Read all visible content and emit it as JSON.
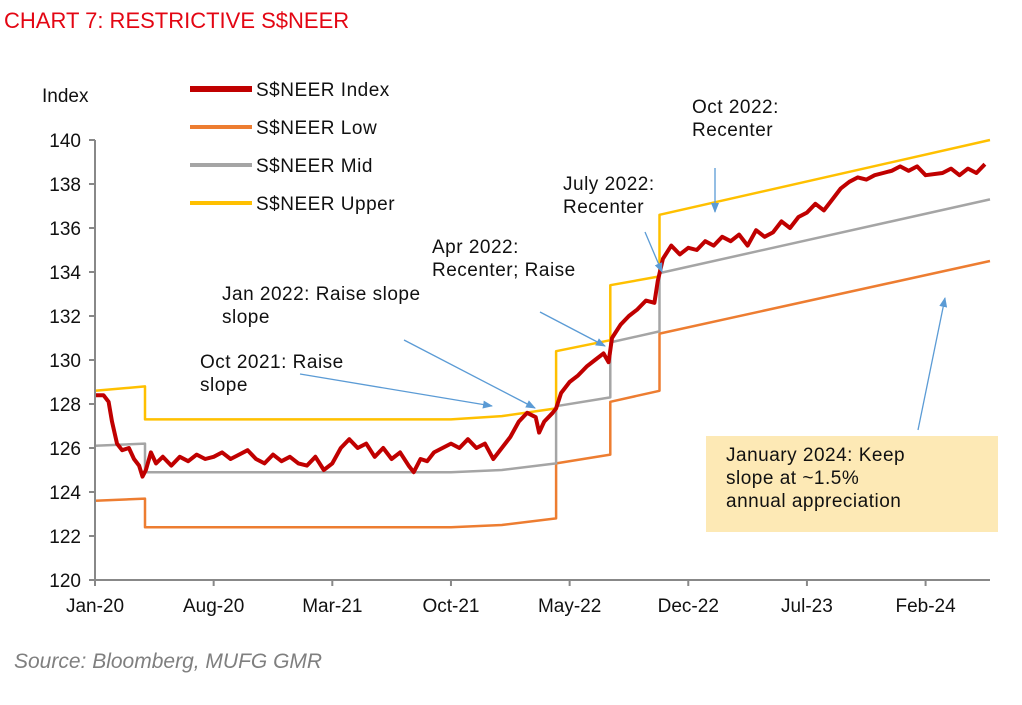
{
  "title": "CHART 7: RESTRICTIVE S$NEER",
  "source": "Source: Bloomberg, MUFG GMR",
  "colors": {
    "index": "#c00000",
    "low": "#ed7d31",
    "mid": "#a5a5a5",
    "upper": "#ffc000",
    "arrow": "#5b9bd5",
    "note_bg": "#fde9b5",
    "title": "#e30613"
  },
  "annotations": {
    "oct2022": [
      "Oct 2022:",
      "Recenter"
    ],
    "jul2022": [
      "July 2022:",
      "Recenter"
    ],
    "apr2022": [
      "Apr 2022:",
      "Recenter; Raise"
    ],
    "jan2022": [
      "Jan 2022: Raise slope",
      "slope"
    ],
    "oct2021": [
      "Oct 2021: Raise",
      "slope"
    ],
    "jan2024": [
      "January 2024: Keep",
      "slope at ~1.5%",
      "annual appreciation"
    ]
  },
  "chart_data": {
    "type": "line",
    "title": "CHART 7: RESTRICTIVE S$NEER",
    "xlabel": "",
    "ylabel": "Index",
    "x_unit": "months since Jan-2020",
    "xlim": [
      0,
      52.8
    ],
    "ylim": [
      120,
      140
    ],
    "yticks": [
      120,
      122,
      124,
      126,
      128,
      130,
      132,
      134,
      136,
      138,
      140
    ],
    "xticks": [
      {
        "m": 0,
        "label": "Jan-20"
      },
      {
        "m": 7,
        "label": "Aug-20"
      },
      {
        "m": 14,
        "label": "Mar-21"
      },
      {
        "m": 21,
        "label": "Oct-21"
      },
      {
        "m": 28,
        "label": "May-22"
      },
      {
        "m": 35,
        "label": "Dec-22"
      },
      {
        "m": 42,
        "label": "Jul-23"
      },
      {
        "m": 49,
        "label": "Feb-24"
      }
    ],
    "grid": false,
    "legend_position": "top-left",
    "series": [
      {
        "name": "S$NEER Index",
        "key": "index",
        "points": [
          [
            0,
            128.4
          ],
          [
            0.5,
            128.4
          ],
          [
            0.8,
            128.1
          ],
          [
            1.0,
            127.2
          ],
          [
            1.3,
            126.2
          ],
          [
            1.6,
            125.9
          ],
          [
            2.0,
            126.0
          ],
          [
            2.3,
            125.5
          ],
          [
            2.6,
            125.2
          ],
          [
            2.8,
            124.7
          ],
          [
            3.0,
            125.0
          ],
          [
            3.3,
            125.8
          ],
          [
            3.6,
            125.3
          ],
          [
            4,
            125.6
          ],
          [
            4.5,
            125.2
          ],
          [
            5,
            125.6
          ],
          [
            5.5,
            125.4
          ],
          [
            6,
            125.7
          ],
          [
            6.5,
            125.5
          ],
          [
            7,
            125.6
          ],
          [
            7.5,
            125.8
          ],
          [
            8,
            125.5
          ],
          [
            8.5,
            125.7
          ],
          [
            9,
            125.9
          ],
          [
            9.5,
            125.5
          ],
          [
            10,
            125.3
          ],
          [
            10.5,
            125.7
          ],
          [
            11,
            125.4
          ],
          [
            11.5,
            125.6
          ],
          [
            12,
            125.3
          ],
          [
            12.5,
            125.2
          ],
          [
            13,
            125.6
          ],
          [
            13.5,
            125.0
          ],
          [
            14,
            125.3
          ],
          [
            14.5,
            126.0
          ],
          [
            15,
            126.4
          ],
          [
            15.5,
            126.0
          ],
          [
            16,
            126.2
          ],
          [
            16.5,
            125.6
          ],
          [
            17,
            126.0
          ],
          [
            17.5,
            125.5
          ],
          [
            18,
            125.8
          ],
          [
            18.5,
            125.2
          ],
          [
            18.8,
            124.9
          ],
          [
            19.2,
            125.5
          ],
          [
            19.6,
            125.4
          ],
          [
            20,
            125.8
          ],
          [
            20.5,
            126.0
          ],
          [
            21,
            126.2
          ],
          [
            21.5,
            126.0
          ],
          [
            22,
            126.4
          ],
          [
            22.5,
            126.0
          ],
          [
            23,
            126.2
          ],
          [
            23.5,
            125.5
          ],
          [
            24,
            126.0
          ],
          [
            24.5,
            126.5
          ],
          [
            25,
            127.2
          ],
          [
            25.5,
            127.6
          ],
          [
            26,
            127.4
          ],
          [
            26.2,
            126.7
          ],
          [
            26.5,
            127.2
          ],
          [
            27,
            127.6
          ],
          [
            27.2,
            127.8
          ],
          [
            27.5,
            128.5
          ],
          [
            28,
            129.0
          ],
          [
            28.5,
            129.3
          ],
          [
            29,
            129.7
          ],
          [
            29.5,
            130.0
          ],
          [
            30,
            130.3
          ],
          [
            30.3,
            129.9
          ],
          [
            30.5,
            131.0
          ],
          [
            31,
            131.6
          ],
          [
            31.5,
            132.0
          ],
          [
            32,
            132.3
          ],
          [
            32.5,
            132.7
          ],
          [
            33,
            132.6
          ],
          [
            33.2,
            133.6
          ],
          [
            33.5,
            134.6
          ],
          [
            34,
            135.2
          ],
          [
            34.5,
            134.8
          ],
          [
            35,
            135.1
          ],
          [
            35.5,
            135.0
          ],
          [
            36,
            135.4
          ],
          [
            36.5,
            135.2
          ],
          [
            37,
            135.6
          ],
          [
            37.5,
            135.4
          ],
          [
            38,
            135.7
          ],
          [
            38.5,
            135.2
          ],
          [
            39,
            135.9
          ],
          [
            39.5,
            135.6
          ],
          [
            40,
            135.8
          ],
          [
            40.5,
            136.3
          ],
          [
            41,
            136.0
          ],
          [
            41.5,
            136.5
          ],
          [
            42,
            136.7
          ],
          [
            42.5,
            137.1
          ],
          [
            43,
            136.8
          ],
          [
            43.5,
            137.3
          ],
          [
            44,
            137.8
          ],
          [
            44.5,
            138.1
          ],
          [
            45,
            138.3
          ],
          [
            45.5,
            138.2
          ],
          [
            46,
            138.4
          ],
          [
            46.5,
            138.5
          ],
          [
            47,
            138.6
          ],
          [
            47.5,
            138.8
          ],
          [
            48,
            138.6
          ],
          [
            48.5,
            138.8
          ],
          [
            49,
            138.4
          ],
          [
            50,
            138.5
          ],
          [
            50.5,
            138.7
          ],
          [
            51,
            138.4
          ],
          [
            51.5,
            138.7
          ],
          [
            52,
            138.5
          ],
          [
            52.5,
            138.9
          ]
        ]
      },
      {
        "name": "S$NEER Low",
        "key": "low",
        "points": [
          [
            0,
            123.6
          ],
          [
            2.95,
            123.7
          ],
          [
            2.95,
            122.4
          ],
          [
            21,
            122.4
          ],
          [
            24,
            122.5
          ],
          [
            27.2,
            122.8
          ],
          [
            27.2,
            125.3
          ],
          [
            30.4,
            125.7
          ],
          [
            30.4,
            128.1
          ],
          [
            33.3,
            128.6
          ],
          [
            33.3,
            131.2
          ],
          [
            52.8,
            134.5
          ]
        ]
      },
      {
        "name": "S$NEER Mid",
        "key": "mid",
        "points": [
          [
            0,
            126.1
          ],
          [
            2.95,
            126.2
          ],
          [
            2.95,
            124.9
          ],
          [
            21,
            124.9
          ],
          [
            24,
            125.0
          ],
          [
            27.2,
            125.3
          ],
          [
            27.2,
            127.9
          ],
          [
            30.4,
            128.3
          ],
          [
            30.4,
            130.8
          ],
          [
            33.3,
            131.3
          ],
          [
            33.3,
            133.95
          ],
          [
            52.8,
            137.3
          ]
        ]
      },
      {
        "name": "S$NEER Upper",
        "key": "upper",
        "points": [
          [
            0,
            128.6
          ],
          [
            2.95,
            128.8
          ],
          [
            2.95,
            127.3
          ],
          [
            21,
            127.3
          ],
          [
            24,
            127.45
          ],
          [
            27.2,
            127.8
          ],
          [
            27.2,
            130.4
          ],
          [
            30.4,
            130.9
          ],
          [
            30.4,
            133.4
          ],
          [
            33.3,
            133.8
          ],
          [
            33.3,
            136.6
          ],
          [
            52.8,
            140.0
          ]
        ]
      }
    ]
  }
}
